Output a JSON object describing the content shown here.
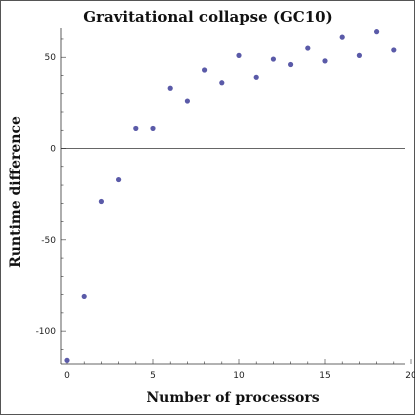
{
  "chart_data": {
    "type": "scatter",
    "title": "Gravitational collapse (GC10)",
    "xlabel": "Number of processors",
    "ylabel": "Runtime difference",
    "xlim": [
      0,
      20
    ],
    "ylim": [
      -118,
      66
    ],
    "xticks": [
      0,
      5,
      10,
      15,
      20
    ],
    "yticks": [
      -100,
      -50,
      0,
      50
    ],
    "xtick_labels": [
      "0",
      "5",
      "10",
      "15",
      "20"
    ],
    "ytick_labels": [
      "-100",
      "-50",
      "0",
      "50"
    ],
    "point_color": "#5a5aa8",
    "points": [
      {
        "x": 0,
        "y": -116
      },
      {
        "x": 1,
        "y": -81
      },
      {
        "x": 2,
        "y": -29
      },
      {
        "x": 3,
        "y": -17
      },
      {
        "x": 4,
        "y": 11
      },
      {
        "x": 5,
        "y": 11
      },
      {
        "x": 6,
        "y": 33
      },
      {
        "x": 7,
        "y": 26
      },
      {
        "x": 8,
        "y": 43
      },
      {
        "x": 9,
        "y": 36
      },
      {
        "x": 10,
        "y": 51
      },
      {
        "x": 11,
        "y": 39
      },
      {
        "x": 12,
        "y": 49
      },
      {
        "x": 13,
        "y": 46
      },
      {
        "x": 14,
        "y": 55
      },
      {
        "x": 15,
        "y": 48
      },
      {
        "x": 16,
        "y": 61
      },
      {
        "x": 17,
        "y": 51
      },
      {
        "x": 18,
        "y": 64
      },
      {
        "x": 19,
        "y": 54
      }
    ]
  }
}
